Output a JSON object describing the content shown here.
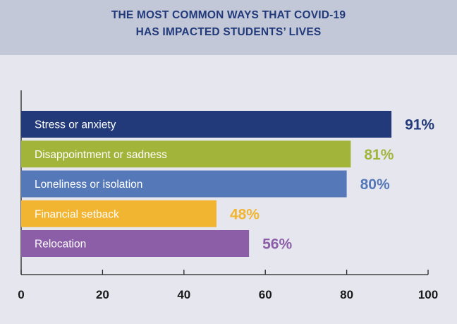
{
  "chart_data": {
    "type": "bar",
    "orientation": "horizontal",
    "title_lines": [
      "THE MOST COMMON WAYS THAT COVID-19",
      "HAS IMPACTED STUDENTS’ LIVES"
    ],
    "categories": [
      "Stress or anxiety",
      "Disappointment or sadness",
      "Loneliness or isolation",
      "Financial setback",
      "Relocation"
    ],
    "values": [
      91,
      81,
      80,
      48,
      56
    ],
    "value_labels": [
      "91%",
      "81%",
      "80%",
      "48%",
      "56%"
    ],
    "colors": [
      "#223a7a",
      "#a2b53a",
      "#5578b9",
      "#f2b531",
      "#8c5ea8"
    ],
    "xlim": [
      0,
      100
    ],
    "xticks": [
      0,
      20,
      40,
      60,
      80,
      100
    ],
    "xtick_labels": [
      "0",
      "20",
      "40",
      "60",
      "80",
      "100"
    ],
    "grid": false,
    "legend": "none"
  }
}
